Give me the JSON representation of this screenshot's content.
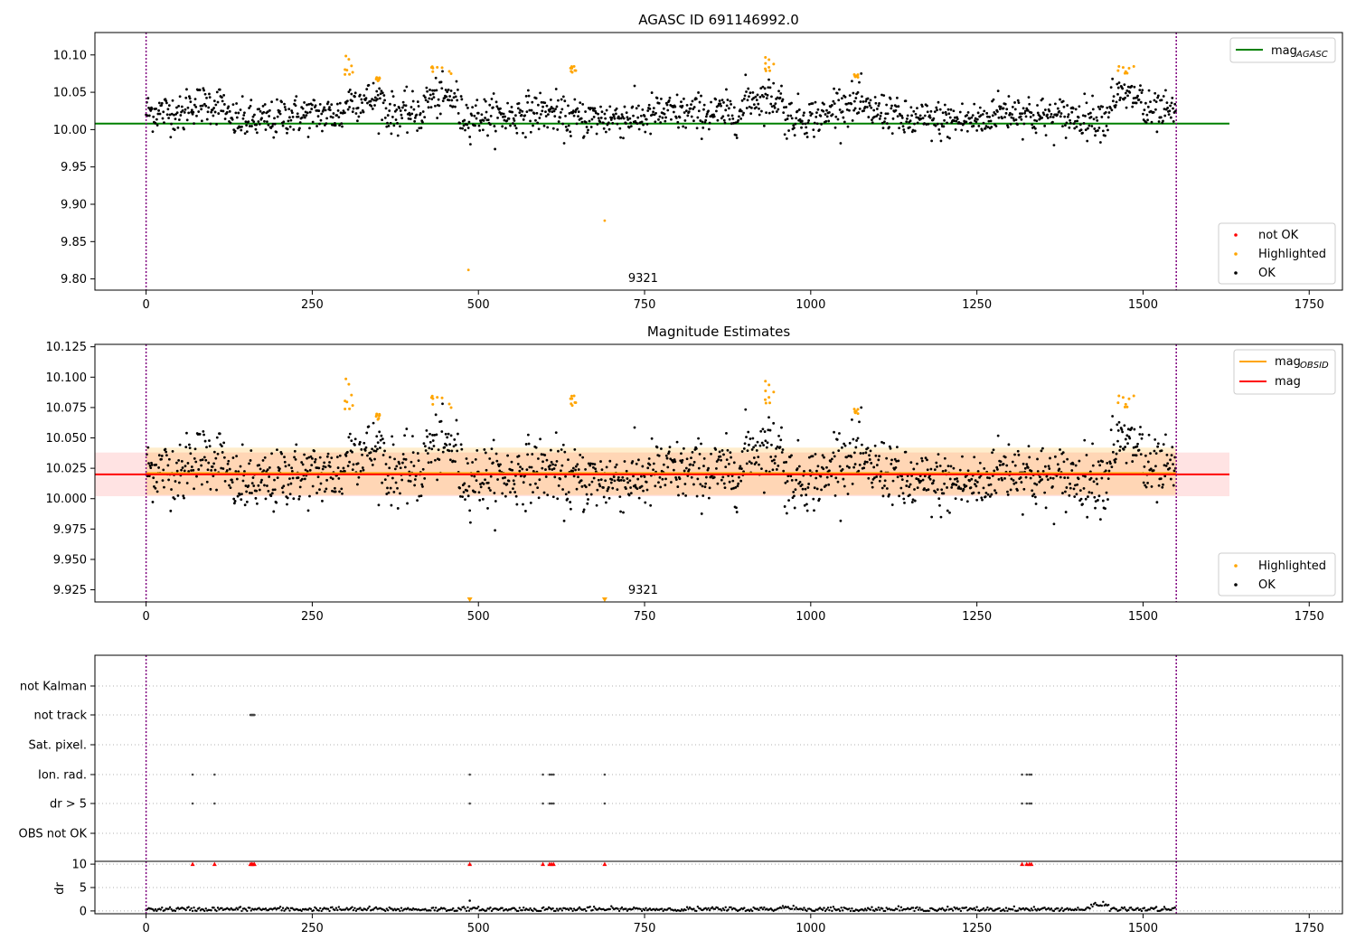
{
  "chart_data": [
    {
      "type": "scatter",
      "title": "AGASC ID 691146992.0",
      "xlim": [
        -77,
        1800
      ],
      "ylim": [
        9.785,
        10.13
      ],
      "xticks": [
        0,
        250,
        500,
        750,
        1000,
        1250,
        1500,
        1750
      ],
      "yticks": [
        9.8,
        9.85,
        9.9,
        9.95,
        10.0,
        10.05,
        10.1
      ],
      "ytick_labels": [
        "9.80",
        "9.85",
        "9.90",
        "9.95",
        "10.00",
        "10.05",
        "10.10"
      ],
      "vlines": [
        0,
        1550
      ],
      "annotation": "9321",
      "annotation_x": 775,
      "hline": {
        "value": 10.008,
        "color": "#008000"
      },
      "legend_lines": [
        {
          "label": "mag",
          "sub": "AGASC",
          "color": "#008000"
        }
      ],
      "legend_points": [
        {
          "label": "not OK",
          "color": "#ff0000"
        },
        {
          "label": "Highlighted",
          "color": "#ffa500"
        },
        {
          "label": "OK",
          "color": "#000000"
        }
      ],
      "outliers": [
        [
          485,
          9.812
        ],
        [
          690,
          9.878
        ]
      ]
    },
    {
      "type": "scatter",
      "title": "Magnitude Estimates",
      "xlim": [
        -77,
        1800
      ],
      "ylim": [
        9.915,
        10.127
      ],
      "xticks": [
        0,
        250,
        500,
        750,
        1000,
        1250,
        1500,
        1750
      ],
      "yticks": [
        9.925,
        9.95,
        9.975,
        10.0,
        10.025,
        10.05,
        10.075,
        10.1,
        10.125
      ],
      "ytick_labels": [
        "9.925",
        "9.950",
        "9.975",
        "10.000",
        "10.025",
        "10.050",
        "10.075",
        "10.100",
        "10.125"
      ],
      "vlines": [
        0,
        1550
      ],
      "annotation": "9321",
      "annotation_x": 775,
      "mag_line": {
        "value": 10.02,
        "color": "#ff0000"
      },
      "mag_band": [
        10.002,
        10.038
      ],
      "obsid_line": {
        "value": 10.021,
        "color": "#ffa500"
      },
      "obsid_band": [
        10.003,
        10.042
      ],
      "legend_lines": [
        {
          "label": "mag",
          "sub": "OBSID",
          "color": "#ffa500"
        },
        {
          "label": "mag",
          "sub": "",
          "color": "#ff0000"
        }
      ],
      "legend_points": [
        {
          "label": "Highlighted",
          "color": "#ffa500"
        },
        {
          "label": "OK",
          "color": "#000000"
        }
      ],
      "below_range_markers": [
        487,
        690
      ]
    },
    {
      "type": "scatter",
      "categories": [
        "not Kalman",
        "not track",
        "Sat. pixel.",
        "Ion. rad.",
        "dr > 5",
        "OBS not OK"
      ],
      "flags": {
        "not track": [
          157,
          158,
          159,
          160,
          161,
          162,
          163
        ],
        "Ion. rad.": [
          70,
          103,
          487,
          597,
          607,
          610,
          613,
          690,
          1318,
          1325,
          1329,
          1332
        ],
        "dr > 5": [
          70,
          103,
          487,
          597,
          607,
          610,
          613,
          690,
          1318,
          1325,
          1329,
          1332
        ]
      },
      "vlines": [
        0,
        1550
      ]
    },
    {
      "type": "scatter",
      "ylabel": "dr",
      "xlim": [
        -77,
        1800
      ],
      "ylim": [
        -0.6,
        10.6
      ],
      "yticks": [
        0,
        5,
        10
      ],
      "xticks": [
        0,
        250,
        500,
        750,
        1000,
        1250,
        1500,
        1750
      ],
      "clipped_markers": [
        70,
        103,
        157,
        159,
        161,
        163,
        487,
        597,
        607,
        610,
        613,
        690,
        1318,
        1325,
        1329,
        1332
      ],
      "spike": [
        487,
        2.2
      ],
      "vlines": [
        0,
        1550
      ]
    }
  ]
}
